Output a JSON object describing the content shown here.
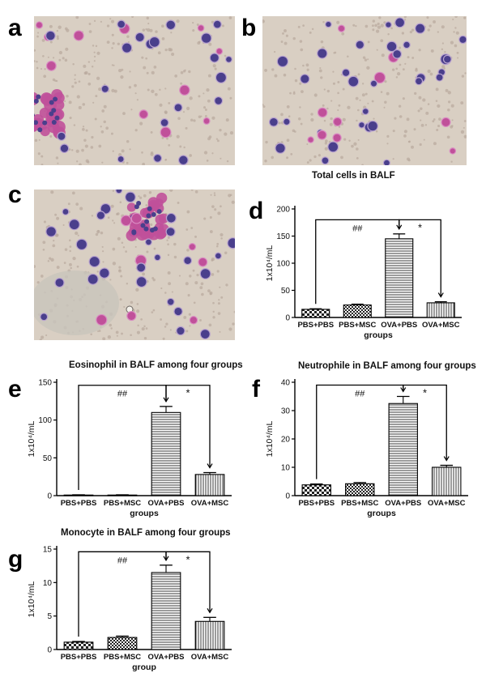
{
  "panels": {
    "micro": [
      {
        "letter": "a",
        "fill": 0.45,
        "cluster": true,
        "smudge": false
      },
      {
        "letter": "b",
        "fill": 0.6,
        "cluster": false,
        "smudge": false
      },
      {
        "letter": "c",
        "fill": 0.5,
        "cluster": true,
        "smudge": true
      }
    ]
  },
  "charts": [
    {
      "letter": "d",
      "title": "Total cells in BALF"
    },
    {
      "letter": "e",
      "title": "Eosinophil in BALF among four groups"
    },
    {
      "letter": "f",
      "title": "Neutrophile in BALF among four groups"
    },
    {
      "letter": "g",
      "title": "Monocyte in BALF among four groups"
    }
  ],
  "colors": {
    "eosin": "#c0509a",
    "nucleus": "#4a3f8c",
    "slide": "#d9cfc3"
  },
  "chart_data": [
    {
      "type": "bar",
      "title": "Total cells in BALF",
      "categories": [
        "PBS+PBS",
        "PBS+MSC",
        "OVA+PBS",
        "OVA+MSC"
      ],
      "values": [
        15,
        23,
        145,
        27
      ],
      "errors": [
        1,
        1.5,
        9,
        2
      ],
      "patterns": [
        "checker",
        "checker-dense",
        "horizontal",
        "vertical"
      ],
      "xlabel": "groups",
      "ylabel": "1x10⁴/mL",
      "ylim": [
        0,
        200
      ],
      "yticks": [
        0,
        50,
        100,
        150,
        200
      ],
      "annotations": [
        {
          "label": "##",
          "from": 0,
          "to": 2,
          "level": 180
        },
        {
          "label": "*",
          "from": 2,
          "to": 3,
          "level": 180
        }
      ]
    },
    {
      "type": "bar",
      "title": "Eosinophil in BALF among four groups",
      "categories": [
        "PBS+PBS",
        "PBS+MSC",
        "OVA+PBS",
        "OVA+MSC"
      ],
      "values": [
        0.8,
        0.8,
        110,
        28
      ],
      "errors": [
        0.3,
        0.3,
        8,
        2.5
      ],
      "patterns": [
        "checker",
        "checker-dense",
        "horizontal",
        "vertical"
      ],
      "xlabel": "groups",
      "ylabel": "1x10⁴/mL",
      "ylim": [
        0,
        150
      ],
      "yticks": [
        0,
        50,
        100,
        150
      ],
      "annotations": [
        {
          "label": "##",
          "from": 0,
          "to": 2,
          "level": 146
        },
        {
          "label": "*",
          "from": 2,
          "to": 3,
          "level": 146
        }
      ]
    },
    {
      "type": "bar",
      "title": "Neutrophile in BALF among four groups",
      "categories": [
        "PBS+PBS",
        "PBS+MSC",
        "OVA+PBS",
        "OVA+MSC"
      ],
      "values": [
        3.8,
        4.2,
        32.5,
        10
      ],
      "errors": [
        0.3,
        0.4,
        2.5,
        0.7
      ],
      "patterns": [
        "checker",
        "checker-dense",
        "horizontal",
        "vertical"
      ],
      "xlabel": "groups",
      "ylabel": "1x10⁴/mL",
      "ylim": [
        0,
        40
      ],
      "yticks": [
        0,
        10,
        20,
        30,
        40
      ],
      "annotations": [
        {
          "label": "##",
          "from": 0,
          "to": 2,
          "level": 39
        },
        {
          "label": "*",
          "from": 2,
          "to": 3,
          "level": 39
        }
      ]
    },
    {
      "type": "bar",
      "title": "Monocyte in BALF among four groups",
      "categories": [
        "PBS+PBS",
        "PBS+MSC",
        "OVA+PBS",
        "OVA+MSC"
      ],
      "values": [
        1.1,
        1.8,
        11.5,
        4.2
      ],
      "errors": [
        0.1,
        0.2,
        1.1,
        0.6
      ],
      "patterns": [
        "checker",
        "checker-dense",
        "horizontal",
        "vertical"
      ],
      "xlabel": "group",
      "ylabel": "1x10⁴/mL",
      "ylim": [
        0,
        15
      ],
      "yticks": [
        0,
        5,
        10,
        15
      ],
      "annotations": [
        {
          "label": "##",
          "from": 0,
          "to": 2,
          "level": 14.6
        },
        {
          "label": "*",
          "from": 2,
          "to": 3,
          "level": 14.6
        }
      ]
    }
  ]
}
